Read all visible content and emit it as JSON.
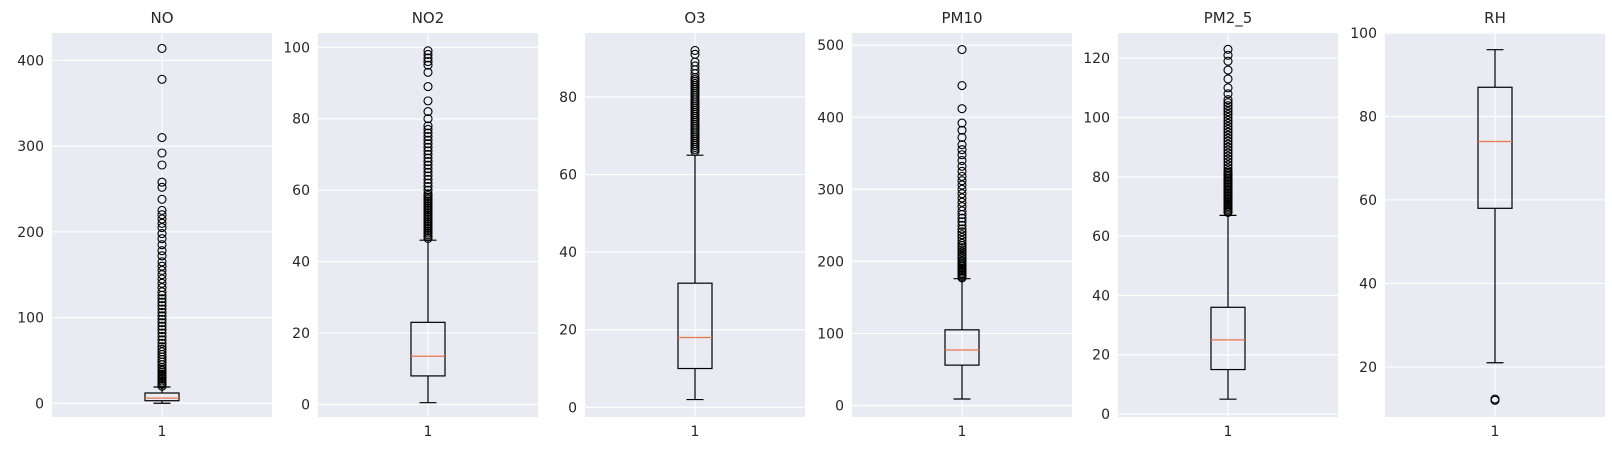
{
  "chart_data": [
    {
      "type": "box",
      "title": "NO",
      "categories": [
        "1"
      ],
      "yticks": [
        0,
        100,
        200,
        300,
        400
      ],
      "ylim": [
        -16,
        432
      ],
      "grid": true,
      "box": {
        "whisker_low": 0,
        "q1": 3,
        "median": 6,
        "q3": 12,
        "whisker_high": 19
      },
      "fliers": [
        20,
        22,
        24,
        26,
        28,
        30,
        32,
        34,
        36,
        38,
        40,
        42,
        45,
        48,
        51,
        54,
        57,
        60,
        63,
        66,
        70,
        74,
        78,
        82,
        86,
        90,
        94,
        98,
        102,
        106,
        110,
        114,
        118,
        122,
        126,
        130,
        135,
        140,
        145,
        150,
        155,
        160,
        165,
        172,
        178,
        185,
        192,
        198,
        205,
        210,
        215,
        220,
        225,
        238,
        252,
        258,
        278,
        292,
        310,
        378,
        414
      ]
    },
    {
      "type": "box",
      "title": "NO2",
      "categories": [
        "1"
      ],
      "yticks": [
        0,
        20,
        40,
        60,
        80,
        100
      ],
      "ylim": [
        -3.5,
        104
      ],
      "grid": true,
      "box": {
        "whisker_low": 0.5,
        "q1": 8,
        "median": 13.5,
        "q3": 23,
        "whisker_high": 46
      },
      "fliers": [
        46.5,
        47,
        47.5,
        48,
        48.5,
        49,
        49.5,
        50,
        50.5,
        51,
        51.5,
        52,
        52.5,
        53,
        53.5,
        54,
        54.5,
        55,
        55.5,
        56,
        56.5,
        57,
        57.5,
        58,
        58.5,
        59,
        60,
        61,
        62,
        63,
        64,
        65,
        66,
        67,
        68,
        69,
        70,
        71,
        72,
        73,
        74,
        75,
        76,
        77,
        78,
        80,
        82,
        85,
        89,
        93,
        95,
        96,
        97,
        98,
        99
      ]
    },
    {
      "type": "box",
      "title": "O3",
      "categories": [
        "1"
      ],
      "yticks": [
        0,
        20,
        40,
        60,
        80
      ],
      "ylim": [
        -2.5,
        96.5
      ],
      "grid": true,
      "box": {
        "whisker_low": 2,
        "q1": 10,
        "median": 18,
        "q3": 32,
        "whisker_high": 65
      },
      "fliers": [
        66,
        66.5,
        67,
        67.5,
        68,
        68.5,
        69,
        69.5,
        70,
        70.5,
        71,
        71.5,
        72,
        72.5,
        73,
        73.5,
        74,
        74.5,
        75,
        75.5,
        76,
        76.5,
        77,
        77.5,
        78,
        78.5,
        79,
        79.5,
        80,
        80.5,
        81,
        81.5,
        82,
        82.5,
        83,
        83.5,
        84,
        84.5,
        85,
        86,
        87,
        88,
        89,
        91,
        92
      ]
    },
    {
      "type": "box",
      "title": "PM10",
      "categories": [
        "1"
      ],
      "yticks": [
        0,
        100,
        200,
        300,
        400,
        500
      ],
      "ylim": [
        -16,
        517
      ],
      "grid": true,
      "box": {
        "whisker_low": 9,
        "q1": 56,
        "median": 77,
        "q3": 105,
        "whisker_high": 176
      },
      "fliers": [
        177,
        179,
        181,
        183,
        185,
        187,
        189,
        191,
        193,
        195,
        197,
        199,
        201,
        204,
        207,
        210,
        213,
        216,
        219,
        222,
        225,
        229,
        233,
        237,
        241,
        245,
        250,
        255,
        260,
        265,
        270,
        276,
        282,
        288,
        294,
        300,
        306,
        312,
        318,
        325,
        332,
        340,
        348,
        355,
        362,
        372,
        382,
        392,
        412,
        444,
        494
      ]
    },
    {
      "type": "box",
      "title": "PM2_5",
      "categories": [
        "1"
      ],
      "yticks": [
        0,
        20,
        40,
        60,
        80,
        100,
        120
      ],
      "ylim": [
        -1,
        128.5
      ],
      "grid": true,
      "box": {
        "whisker_low": 5,
        "q1": 15,
        "median": 25,
        "q3": 36,
        "whisker_high": 67
      },
      "fliers": [
        68,
        68.5,
        69,
        69.5,
        70,
        70.5,
        71,
        71.5,
        72,
        72.5,
        73,
        73.5,
        74,
        74.5,
        75,
        75.5,
        76,
        76.5,
        77,
        77.5,
        78,
        78.5,
        79,
        79.5,
        80,
        80.5,
        81,
        81.5,
        82,
        83,
        84,
        85,
        86,
        87,
        88,
        89,
        90,
        91,
        92,
        93,
        94,
        95,
        96,
        97,
        98,
        99,
        100,
        101,
        102,
        103,
        104,
        105,
        106,
        108,
        110,
        113,
        116,
        119,
        121,
        123
      ]
    },
    {
      "type": "box",
      "title": "RH",
      "categories": [
        "1"
      ],
      "yticks": [
        20,
        40,
        60,
        80,
        100
      ],
      "ylim": [
        8,
        100
      ],
      "grid": true,
      "box": {
        "whisker_low": 21,
        "q1": 58,
        "median": 74,
        "q3": 87,
        "whisker_high": 96
      },
      "fliers": [
        12,
        12.3
      ]
    }
  ]
}
